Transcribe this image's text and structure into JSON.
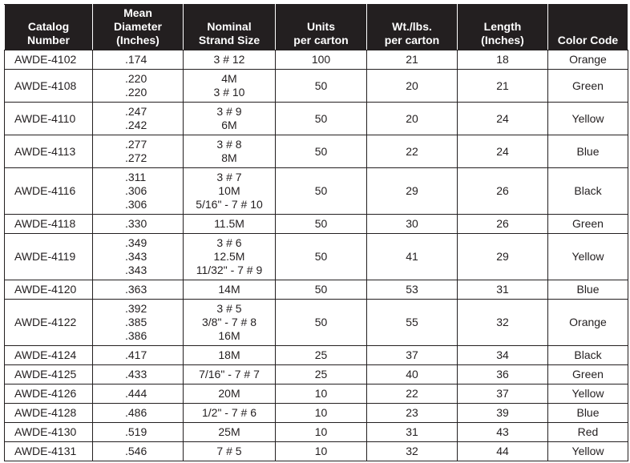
{
  "table": {
    "header": [
      [
        "Catalog",
        "Number"
      ],
      [
        "Mean",
        "Diameter",
        "(Inches)"
      ],
      [
        "Nominal",
        "Strand Size"
      ],
      [
        "Units",
        "per carton"
      ],
      [
        "Wt./lbs.",
        "per carton"
      ],
      [
        "Length",
        "(Inches)"
      ],
      [
        "Color Code"
      ]
    ],
    "rows": [
      [
        "AWDE-4102",
        [
          ".174"
        ],
        [
          "3 # 12"
        ],
        100,
        21,
        18,
        "Orange"
      ],
      [
        "AWDE-4108",
        [
          ".220",
          ".220"
        ],
        [
          "4M",
          "3 # 10"
        ],
        50,
        20,
        21,
        "Green"
      ],
      [
        "AWDE-4110",
        [
          ".247",
          ".242"
        ],
        [
          "3 # 9",
          "6M"
        ],
        50,
        20,
        24,
        "Yellow"
      ],
      [
        "AWDE-4113",
        [
          ".277",
          ".272"
        ],
        [
          "3 # 8",
          "8M"
        ],
        50,
        22,
        24,
        "Blue"
      ],
      [
        "AWDE-4116",
        [
          ".311",
          ".306",
          ".306"
        ],
        [
          "3 # 7",
          "10M",
          "5/16\" - 7 # 10"
        ],
        50,
        29,
        26,
        "Black"
      ],
      [
        "AWDE-4118",
        [
          ".330"
        ],
        [
          "11.5M"
        ],
        50,
        30,
        26,
        "Green"
      ],
      [
        "AWDE-4119",
        [
          ".349",
          ".343",
          ".343"
        ],
        [
          "3 # 6",
          "12.5M",
          "11/32\" - 7 # 9"
        ],
        50,
        41,
        29,
        "Yellow"
      ],
      [
        "AWDE-4120",
        [
          ".363"
        ],
        [
          "14M"
        ],
        50,
        53,
        31,
        "Blue"
      ],
      [
        "AWDE-4122",
        [
          ".392",
          ".385",
          ".386"
        ],
        [
          "3 # 5",
          "3/8\" - 7 # 8",
          "16M"
        ],
        50,
        55,
        32,
        "Orange"
      ],
      [
        "AWDE-4124",
        [
          ".417"
        ],
        [
          "18M"
        ],
        25,
        37,
        34,
        "Black"
      ],
      [
        "AWDE-4125",
        [
          ".433"
        ],
        [
          "7/16\" - 7 # 7"
        ],
        25,
        40,
        36,
        "Green"
      ],
      [
        "AWDE-4126",
        [
          ".444"
        ],
        [
          "20M"
        ],
        10,
        22,
        37,
        "Yellow"
      ],
      [
        "AWDE-4128",
        [
          ".486"
        ],
        [
          "1/2\" - 7 # 6"
        ],
        10,
        23,
        39,
        "Blue"
      ],
      [
        "AWDE-4130",
        [
          ".519"
        ],
        [
          "25M"
        ],
        10,
        31,
        43,
        "Red"
      ],
      [
        "AWDE-4131",
        [
          ".546"
        ],
        [
          "7 # 5"
        ],
        10,
        32,
        44,
        "Yellow"
      ]
    ]
  }
}
